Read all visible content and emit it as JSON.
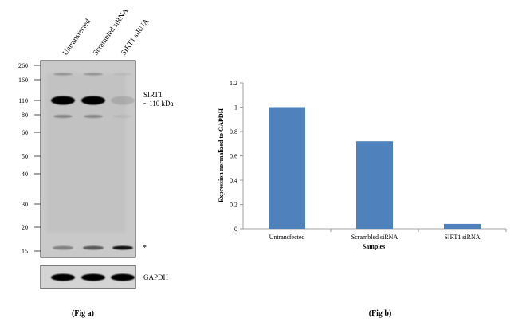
{
  "fig_a": {
    "caption": "(Fig a)",
    "lanes": [
      "Untransfected",
      "Scrambled siRNA",
      "SIRT1 siRNA"
    ],
    "markers": [
      "260",
      "160",
      "110",
      "80",
      "60",
      "50",
      "40",
      "30",
      "20",
      "15"
    ],
    "band_label_1": "SIRT1",
    "band_label_2": "~ 110 kDa",
    "asterisk": "*",
    "loading_label": "GAPDH",
    "sirt1_band_intensity": [
      1.0,
      1.0,
      0.12
    ],
    "low_band_intensity": [
      0.35,
      0.55,
      0.9
    ],
    "gapdh_band_intensity": [
      1.0,
      1.0,
      1.0
    ]
  },
  "fig_b": {
    "caption": "(Fig b)"
  },
  "chart_data": {
    "type": "bar",
    "categories": [
      "Untransfected",
      "Scrambled siRNA",
      "SIRT1 siRNA"
    ],
    "values": [
      1.0,
      0.72,
      0.04
    ],
    "title": "",
    "xlabel": "Samples",
    "ylabel": "Expression  normalized to GAPDH",
    "ylim": [
      0,
      1.2
    ],
    "yticks": [
      "0",
      "0.2",
      "0.4",
      "0.6",
      "0.8",
      "1",
      "1.2"
    ],
    "bar_color": "#4f81bd",
    "grid": false,
    "legend": "none"
  }
}
